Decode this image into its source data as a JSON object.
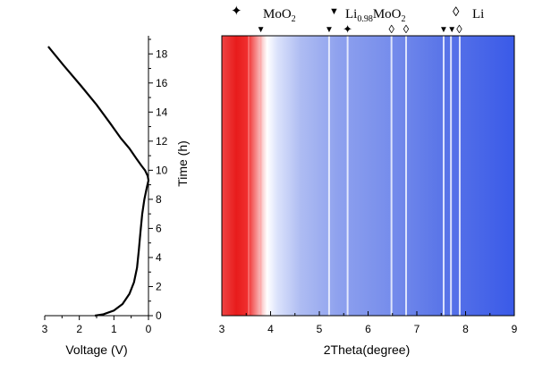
{
  "legend": [
    {
      "symbol": "✦",
      "color": "#3a3aa0",
      "label": "MoO",
      "subscript": "2"
    },
    {
      "symbol": "▼",
      "color": "#d40000",
      "label": "Li",
      "subscript": "0.98",
      "label2": "MoO",
      "subscript2": "2"
    },
    {
      "symbol": "◊",
      "color": "#333333",
      "label": "Li"
    }
  ],
  "chart_data": [
    {
      "type": "line",
      "xlabel": "Voltage (V)",
      "ylabel": "Time (h)",
      "xlim": [
        3,
        0
      ],
      "ylim": [
        0,
        19
      ],
      "xticks": [
        "3",
        "2",
        "1",
        "0"
      ],
      "yticks": [
        "0",
        "2",
        "4",
        "6",
        "8",
        "10",
        "12",
        "14",
        "16",
        "18"
      ],
      "series": [
        {
          "x": [
            1.55,
            1.3,
            1.0,
            0.75,
            0.55,
            0.42,
            0.33,
            0.28,
            0.23,
            0.18,
            0.12,
            0.05,
            0.0,
            0.02,
            0.1,
            0.2,
            0.35,
            0.55,
            0.8,
            1.1,
            1.5,
            1.95,
            2.45,
            2.9
          ],
          "y": [
            0.0,
            0.1,
            0.35,
            0.8,
            1.5,
            2.3,
            3.3,
            4.5,
            5.8,
            7.0,
            8.0,
            8.8,
            9.3,
            9.6,
            10.0,
            10.3,
            10.8,
            11.5,
            12.2,
            13.2,
            14.5,
            15.8,
            17.2,
            18.5
          ]
        }
      ]
    },
    {
      "type": "heatmap",
      "xlabel": "2Theta(degree)",
      "xlim": [
        3,
        9
      ],
      "ylim": [
        0,
        19
      ],
      "xticks": [
        "3",
        "4",
        "5",
        "6",
        "7",
        "8",
        "9"
      ],
      "peaks": [
        3.55,
        3.8,
        5.2,
        5.58,
        6.48,
        6.78,
        7.55,
        7.7,
        7.88
      ],
      "markers": [
        {
          "phase": "Li0.98MoO2",
          "x": 3.8
        },
        {
          "phase": "Li0.98MoO2",
          "x": 5.2
        },
        {
          "phase": "MoO2",
          "x": 5.58
        },
        {
          "phase": "Li",
          "x": 6.48
        },
        {
          "phase": "Li",
          "x": 6.78
        },
        {
          "phase": "Li0.98MoO2",
          "x": 7.55
        },
        {
          "phase": "Li0.98MoO2",
          "x": 7.72
        },
        {
          "phase": "Li",
          "x": 7.87
        }
      ]
    }
  ]
}
